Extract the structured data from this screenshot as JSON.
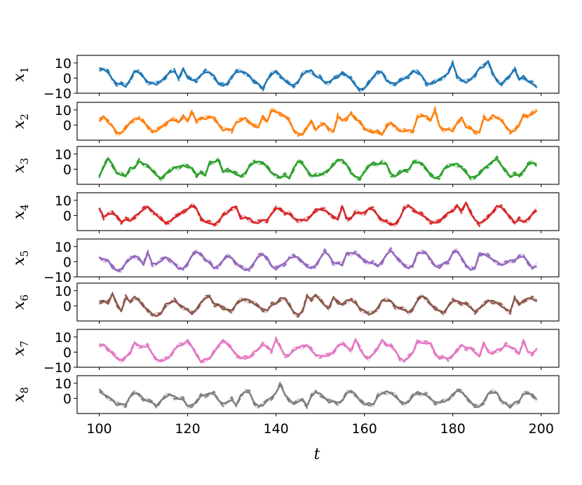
{
  "chart_data": {
    "type": "line",
    "xlabel": "t",
    "xlim": [
      95,
      204
    ],
    "xticks": [
      100,
      120,
      140,
      160,
      180,
      200
    ],
    "ylim": [
      -10,
      15
    ],
    "panels": [
      {
        "label": "x",
        "sub": "1",
        "color": "#1f77b4",
        "yticks": [
          10,
          0,
          -10
        ],
        "seed": 11
      },
      {
        "label": "x",
        "sub": "2",
        "color": "#ff7f0e",
        "yticks": [
          10,
          0
        ],
        "seed": 23
      },
      {
        "label": "x",
        "sub": "3",
        "color": "#2ca02c",
        "yticks": [
          10,
          0
        ],
        "seed": 37
      },
      {
        "label": "x",
        "sub": "4",
        "color": "#d62728",
        "yticks": [
          10,
          0
        ],
        "seed": 41
      },
      {
        "label": "x",
        "sub": "5",
        "color": "#9467bd",
        "yticks": [
          10,
          0,
          -10
        ],
        "seed": 53
      },
      {
        "label": "x",
        "sub": "6",
        "color": "#8c564b",
        "yticks": [
          10,
          0
        ],
        "seed": 67
      },
      {
        "label": "x",
        "sub": "7",
        "color": "#e377c2",
        "yticks": [
          10,
          0,
          -10
        ],
        "seed": 71
      },
      {
        "label": "x",
        "sub": "8",
        "color": "#7f7f7f",
        "yticks": [
          10,
          0
        ],
        "seed": 89
      }
    ],
    "series_styles": [
      "solid",
      "dashed",
      "shaded-band"
    ],
    "x_start": 100,
    "x_end": 199
  }
}
